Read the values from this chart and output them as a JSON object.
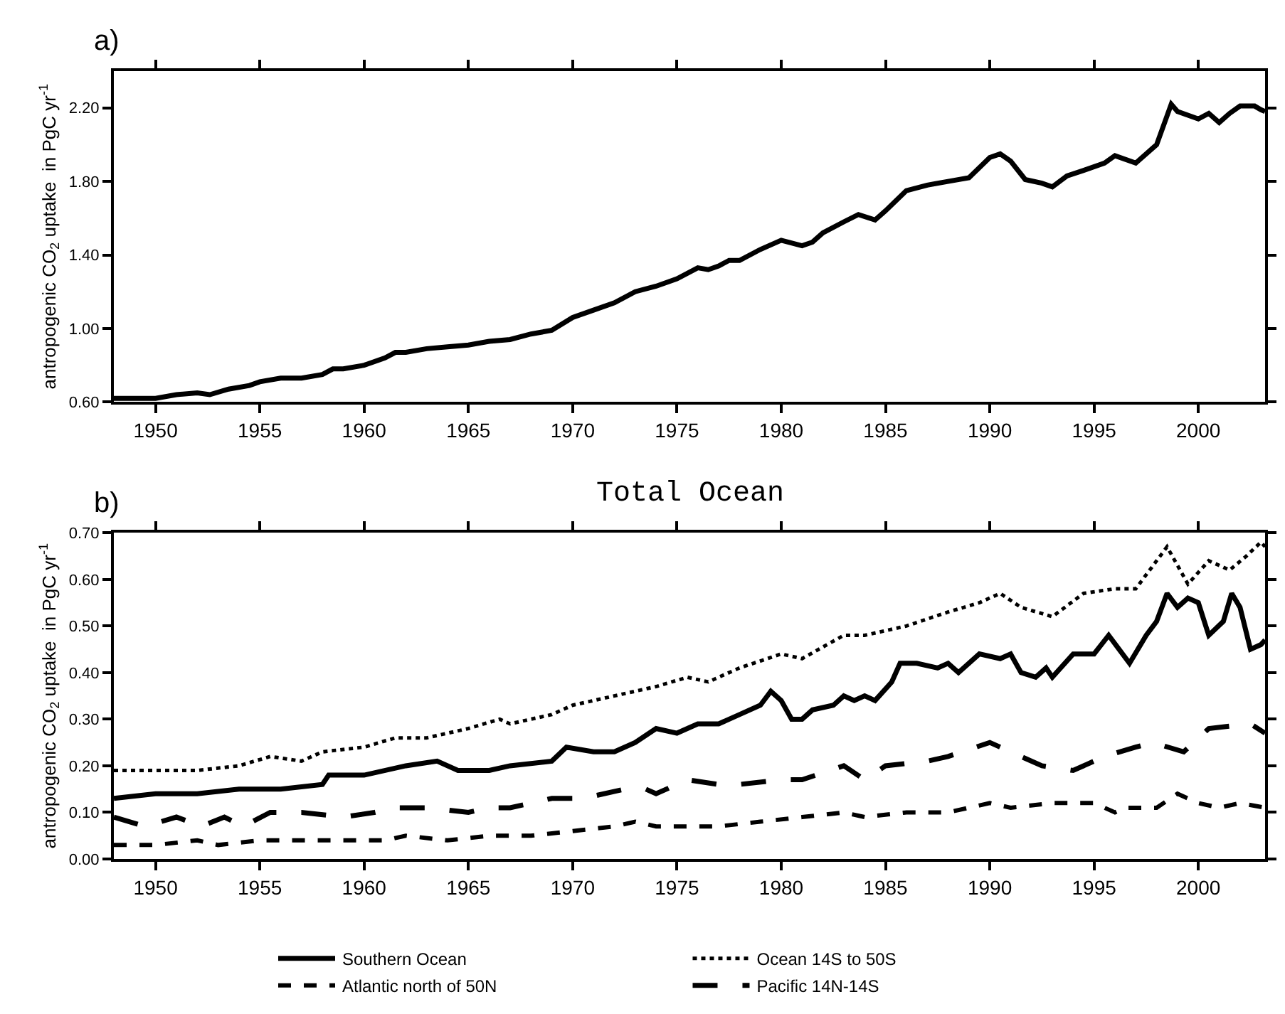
{
  "chart_data": [
    {
      "type": "line",
      "ylabel": "antropogenic CO$_{2}$ uptake  in PgC yr$^{-1}$",
      "annotations": [
        "a)"
      ],
      "xlim": [
        1948,
        2003.2
      ],
      "xticks": [
        1950,
        1955,
        1960,
        1965,
        1970,
        1975,
        1980,
        1985,
        1990,
        1995,
        2000
      ],
      "ylim": [
        0.6,
        2.4
      ],
      "yticks": [
        {
          "value": 0.6,
          "label": "0.60"
        },
        {
          "value": 1.0,
          "label": "1.00"
        },
        {
          "value": 1.4,
          "label": "1.40"
        },
        {
          "value": 1.8,
          "label": "1.80"
        },
        {
          "value": 2.2,
          "label": "2.20"
        }
      ],
      "legend": false,
      "series": [
        {
          "color": "#000000",
          "line_style": "solid",
          "x": [
            1948,
            1949,
            1950,
            1951,
            1952,
            1952.6,
            1953.5,
            1954.5,
            1955,
            1956,
            1957,
            1958,
            1958.5,
            1959,
            1960,
            1961,
            1961.5,
            1962,
            1963,
            1964,
            1965,
            1966,
            1967,
            1968,
            1969,
            1970,
            1971,
            1972,
            1973,
            1974,
            1975,
            1976,
            1976.5,
            1977,
            1977.5,
            1978,
            1979,
            1980,
            1981,
            1981.5,
            1982,
            1983,
            1983.7,
            1984.5,
            1985,
            1986,
            1987,
            1988,
            1989,
            1990,
            1990.5,
            1991,
            1991.7,
            1992.5,
            1993,
            1993.7,
            1994.5,
            1995.5,
            1996,
            1997,
            1998,
            1998.7,
            1999,
            2000,
            2000.5,
            2001,
            2001.5,
            2002,
            2002.7,
            2003,
            2003.2
          ],
          "values": [
            0.62,
            0.62,
            0.62,
            0.64,
            0.65,
            0.64,
            0.67,
            0.69,
            0.71,
            0.73,
            0.73,
            0.75,
            0.78,
            0.78,
            0.8,
            0.84,
            0.87,
            0.87,
            0.89,
            0.9,
            0.91,
            0.93,
            0.94,
            0.97,
            0.99,
            1.06,
            1.1,
            1.14,
            1.2,
            1.23,
            1.27,
            1.33,
            1.32,
            1.34,
            1.37,
            1.37,
            1.43,
            1.48,
            1.45,
            1.47,
            1.52,
            1.58,
            1.62,
            1.59,
            1.64,
            1.75,
            1.78,
            1.8,
            1.82,
            1.93,
            1.95,
            1.91,
            1.81,
            1.79,
            1.77,
            1.83,
            1.86,
            1.9,
            1.94,
            1.9,
            2.0,
            2.22,
            2.18,
            2.14,
            2.17,
            2.12,
            2.17,
            2.21,
            2.21,
            2.19,
            2.18
          ]
        }
      ]
    },
    {
      "type": "line",
      "title": "Total Ocean",
      "ylabel": "antropogenic CO$_{2}$ uptake  in PgC yr$^{-1}$",
      "annotations": [
        "b)"
      ],
      "xlim": [
        1948,
        2003.2
      ],
      "xticks": [
        1950,
        1955,
        1960,
        1965,
        1970,
        1975,
        1980,
        1985,
        1990,
        1995,
        2000
      ],
      "ylim": [
        0,
        0.7
      ],
      "yticks": [
        {
          "value": 0,
          "label": "0.00"
        },
        {
          "value": 0.1,
          "label": "0.10"
        },
        {
          "value": 0.2,
          "label": "0.20"
        },
        {
          "value": 0.3,
          "label": "0.30"
        },
        {
          "value": 0.4,
          "label": "0.40"
        },
        {
          "value": 0.5,
          "label": "0.50"
        },
        {
          "value": 0.6,
          "label": "0.60"
        },
        {
          "value": 0.7,
          "label": "0.70"
        }
      ],
      "legend": "bottom",
      "series": [
        {
          "name": "Southern Ocean",
          "color": "#000000",
          "line_style": "solid",
          "x": [
            1948,
            1950,
            1952,
            1954,
            1956,
            1958,
            1958.3,
            1960,
            1962,
            1963.5,
            1964.5,
            1966,
            1967,
            1969,
            1969.7,
            1971,
            1972,
            1973,
            1974,
            1975,
            1976,
            1977,
            1978,
            1979,
            1979.5,
            1980,
            1980.5,
            1981,
            1981.5,
            1982.5,
            1983,
            1983.5,
            1984,
            1984.5,
            1985.3,
            1985.7,
            1986.5,
            1987.5,
            1988,
            1988.5,
            1989.5,
            1990.5,
            1991,
            1991.5,
            1992.2,
            1992.7,
            1993,
            1994,
            1995,
            1995.7,
            1996.2,
            1996.7,
            1997.5,
            1998,
            1998.5,
            1999,
            1999.5,
            2000,
            2000.5,
            2001.2,
            2001.6,
            2002,
            2002.5,
            2003,
            2003.2
          ],
          "values": [
            0.13,
            0.14,
            0.14,
            0.15,
            0.15,
            0.16,
            0.18,
            0.18,
            0.2,
            0.21,
            0.19,
            0.19,
            0.2,
            0.21,
            0.24,
            0.23,
            0.23,
            0.25,
            0.28,
            0.27,
            0.29,
            0.29,
            0.31,
            0.33,
            0.36,
            0.34,
            0.3,
            0.3,
            0.32,
            0.33,
            0.35,
            0.34,
            0.35,
            0.34,
            0.38,
            0.42,
            0.42,
            0.41,
            0.42,
            0.4,
            0.44,
            0.43,
            0.44,
            0.4,
            0.39,
            0.41,
            0.39,
            0.44,
            0.44,
            0.48,
            0.45,
            0.42,
            0.48,
            0.51,
            0.57,
            0.54,
            0.56,
            0.55,
            0.48,
            0.51,
            0.57,
            0.54,
            0.45,
            0.46,
            0.47
          ]
        },
        {
          "name": "Ocean 14S to 50S",
          "color": "#000000",
          "line_style": "dotted",
          "x": [
            1948,
            1950,
            1952,
            1954,
            1955.5,
            1957,
            1958,
            1960,
            1961.5,
            1963,
            1965,
            1966.5,
            1967,
            1969,
            1970,
            1972,
            1974,
            1975.5,
            1976.5,
            1978,
            1980,
            1981,
            1983,
            1984,
            1986,
            1988,
            1989.5,
            1990.5,
            1991.5,
            1993,
            1994.5,
            1996,
            1997,
            1998,
            1998.5,
            1999.5,
            2000.5,
            2001.5,
            2002.3,
            2003,
            2003.2
          ],
          "values": [
            0.19,
            0.19,
            0.19,
            0.2,
            0.22,
            0.21,
            0.23,
            0.24,
            0.26,
            0.26,
            0.28,
            0.3,
            0.29,
            0.31,
            0.33,
            0.35,
            0.37,
            0.39,
            0.38,
            0.41,
            0.44,
            0.43,
            0.48,
            0.48,
            0.5,
            0.53,
            0.55,
            0.57,
            0.54,
            0.52,
            0.57,
            0.58,
            0.58,
            0.64,
            0.67,
            0.59,
            0.64,
            0.62,
            0.65,
            0.68,
            0.67
          ]
        },
        {
          "name": "Atlantic north of 50N",
          "color": "#000000",
          "line_style": "dashed",
          "x": [
            1948,
            1950,
            1952,
            1953,
            1955,
            1957,
            1959,
            1961,
            1962,
            1964,
            1966,
            1968,
            1970,
            1972,
            1973,
            1974,
            1976,
            1977,
            1979,
            1981,
            1983,
            1984,
            1986,
            1988,
            1990,
            1991,
            1993,
            1995,
            1996,
            1996.5,
            1998,
            1999,
            2000,
            2001,
            2002,
            2003.2
          ],
          "values": [
            0.03,
            0.03,
            0.04,
            0.03,
            0.04,
            0.04,
            0.04,
            0.04,
            0.05,
            0.04,
            0.05,
            0.05,
            0.06,
            0.07,
            0.08,
            0.07,
            0.07,
            0.07,
            0.08,
            0.09,
            0.1,
            0.09,
            0.1,
            0.1,
            0.12,
            0.11,
            0.12,
            0.12,
            0.1,
            0.11,
            0.11,
            0.14,
            0.12,
            0.11,
            0.12,
            0.11
          ]
        },
        {
          "name": "Pacific 14N-14S",
          "color": "#000000",
          "line_style": "longdash",
          "x": [
            1948,
            1949.5,
            1951,
            1952.2,
            1953.3,
            1954.2,
            1955.5,
            1957,
            1959,
            1960.5,
            1961.5,
            1963,
            1965,
            1966,
            1967,
            1969,
            1970.5,
            1972.5,
            1973.5,
            1974,
            1975.5,
            1977,
            1978,
            1980,
            1981,
            1983,
            1984,
            1985,
            1987,
            1988,
            1990,
            1991,
            1992.5,
            1994,
            1995.5,
            1997,
            1997.8,
            1999.3,
            2000.5,
            2002.5,
            2003.2
          ],
          "values": [
            0.09,
            0.07,
            0.09,
            0.07,
            0.09,
            0.07,
            0.1,
            0.1,
            0.09,
            0.1,
            0.11,
            0.11,
            0.1,
            0.11,
            0.11,
            0.13,
            0.13,
            0.15,
            0.15,
            0.14,
            0.17,
            0.16,
            0.16,
            0.17,
            0.17,
            0.2,
            0.17,
            0.2,
            0.21,
            0.22,
            0.25,
            0.23,
            0.2,
            0.19,
            0.22,
            0.24,
            0.25,
            0.23,
            0.28,
            0.29,
            0.27
          ]
        }
      ]
    }
  ]
}
